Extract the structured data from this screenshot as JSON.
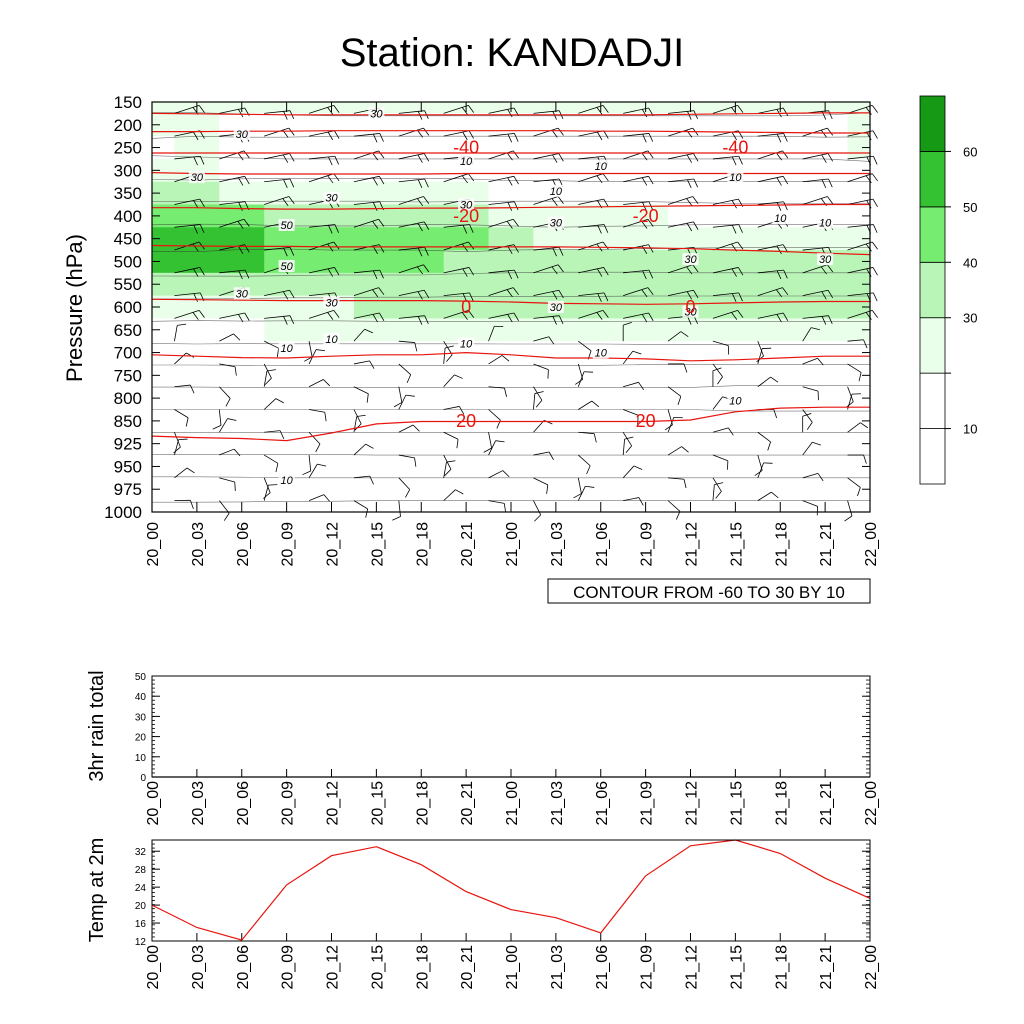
{
  "title": "Station: KANDADJI",
  "colors": {
    "isotherm": "#e8140e",
    "wind": "#000000",
    "temp_line": "#e8140e",
    "levels": [
      "#ffffff",
      "#ffffff",
      "#eaffea",
      "#baf5b8",
      "#76ec70",
      "#35c232",
      "#169a16"
    ]
  },
  "chart_data": [
    {
      "type": "heatmap",
      "title": "Station: KANDADJI",
      "ylabel": "Pressure (hPa)",
      "xlabel": "",
      "x_ticks": [
        "20_00",
        "20_03",
        "20_06",
        "20_09",
        "20_12",
        "20_15",
        "20_18",
        "20_21",
        "21_00",
        "21_03",
        "21_06",
        "21_09",
        "21_12",
        "21_15",
        "21_18",
        "21_21",
        "22_00"
      ],
      "y_ticks": [
        "150",
        "200",
        "250",
        "300",
        "350",
        "400",
        "450",
        "500",
        "550",
        "600",
        "650",
        "700",
        "750",
        "800",
        "850",
        "925",
        "950",
        "975",
        "1000"
      ],
      "contour_info": "CONTOUR FROM -60 TO 30 BY 10",
      "colorbar": {
        "levels": [
          10,
          20,
          30,
          40,
          50,
          60
        ],
        "labels": [
          "10",
          "30",
          "40",
          "50",
          "60"
        ]
      },
      "wind_speed_fill": [
        [
          20,
          20,
          20,
          20,
          20,
          20,
          20,
          20,
          20,
          20,
          20,
          20,
          20,
          20,
          20,
          20,
          20
        ],
        [
          22,
          22,
          18,
          15,
          12,
          12,
          12,
          12,
          12,
          12,
          12,
          12,
          12,
          12,
          12,
          15,
          22
        ],
        [
          15,
          22,
          15,
          12,
          12,
          12,
          12,
          12,
          12,
          12,
          12,
          12,
          12,
          12,
          12,
          12,
          20
        ],
        [
          28,
          28,
          18,
          12,
          12,
          12,
          12,
          12,
          12,
          12,
          12,
          12,
          12,
          12,
          12,
          12,
          12
        ],
        [
          35,
          33,
          28,
          25,
          25,
          25,
          25,
          22,
          15,
          15,
          12,
          12,
          12,
          12,
          12,
          12,
          12
        ],
        [
          46,
          45,
          40,
          38,
          38,
          38,
          33,
          32,
          28,
          28,
          25,
          22,
          18,
          15,
          15,
          15,
          15
        ],
        [
          54,
          56,
          50,
          42,
          42,
          42,
          42,
          40,
          32,
          28,
          28,
          26,
          26,
          24,
          24,
          24,
          24
        ],
        [
          50,
          51,
          52,
          45,
          42,
          42,
          42,
          35,
          32,
          30,
          30,
          30,
          32,
          32,
          32,
          32,
          32
        ],
        [
          38,
          38,
          38,
          35,
          35,
          35,
          35,
          33,
          32,
          32,
          32,
          32,
          32,
          32,
          32,
          32,
          32
        ],
        [
          25,
          25,
          27,
          28,
          28,
          30,
          30,
          30,
          30,
          30,
          30,
          31,
          31,
          31,
          31,
          31,
          31
        ],
        [
          15,
          18,
          18,
          20,
          20,
          20,
          20,
          20,
          20,
          20,
          20,
          20,
          20,
          20,
          20,
          20,
          20
        ],
        [
          8,
          8,
          10,
          11,
          11,
          11,
          11,
          11,
          10,
          10,
          10,
          8,
          8,
          8,
          8,
          8,
          8
        ],
        [
          5,
          5,
          6,
          6,
          6,
          6,
          6,
          6,
          6,
          6,
          6,
          6,
          6,
          6,
          6,
          6,
          6
        ],
        [
          4,
          4,
          4,
          4,
          4,
          4,
          4,
          4,
          4,
          4,
          4,
          4,
          4,
          9,
          9,
          9,
          9
        ],
        [
          4,
          4,
          4,
          4,
          4,
          4,
          4,
          4,
          4,
          4,
          4,
          4,
          4,
          4,
          4,
          4,
          4
        ],
        [
          4,
          4,
          4,
          4,
          4,
          4,
          4,
          4,
          4,
          4,
          4,
          4,
          4,
          4,
          4,
          4,
          4
        ],
        [
          6,
          6,
          6,
          6,
          6,
          4,
          4,
          4,
          4,
          4,
          4,
          4,
          4,
          4,
          4,
          4,
          4
        ],
        [
          9,
          9,
          8,
          6,
          6,
          4,
          4,
          4,
          4,
          4,
          4,
          4,
          4,
          4,
          4,
          4,
          4
        ],
        [
          4,
          4,
          4,
          4,
          4,
          4,
          4,
          4,
          4,
          4,
          4,
          4,
          4,
          4,
          4,
          4,
          4
        ]
      ],
      "isotherm_labels": [
        {
          "text": "-40",
          "x": "20_21",
          "p": "250"
        },
        {
          "text": "-40",
          "x": "21_15",
          "p": "250"
        },
        {
          "text": "-20",
          "x": "20_21",
          "p": "400"
        },
        {
          "text": "-20",
          "x": "21_09",
          "p": "400"
        },
        {
          "text": "0",
          "x": "20_21",
          "p": "600"
        },
        {
          "text": "0",
          "x": "21_12",
          "p": "600"
        },
        {
          "text": "20",
          "x": "20_21",
          "p": "850"
        },
        {
          "text": "20",
          "x": "21_09",
          "p": "850"
        }
      ],
      "isotherms": [
        {
          "level": -40,
          "p": [
            175,
            176,
            177,
            178,
            178,
            178,
            178,
            178,
            178,
            178,
            178,
            178,
            177,
            176,
            175,
            174,
            174
          ]
        },
        {
          "level": -40,
          "p": [
            215,
            215,
            214,
            214,
            213,
            213,
            213,
            213,
            213,
            213,
            214,
            214,
            215,
            216,
            217,
            218,
            218
          ]
        },
        {
          "level": -40,
          "p": [
            262,
            262,
            262,
            262,
            262,
            262,
            262,
            262,
            262,
            262,
            262,
            262,
            262,
            262,
            262,
            262,
            262
          ]
        },
        {
          "level": -40,
          "p": [
            305,
            307,
            308,
            308,
            308,
            308,
            308,
            307,
            307,
            307,
            307,
            307,
            307,
            307,
            307,
            307,
            307
          ]
        },
        {
          "level": -20,
          "p": [
            382,
            382,
            384,
            385,
            385,
            384,
            383,
            383,
            382,
            381,
            380,
            379,
            378,
            377,
            376,
            375,
            375
          ]
        },
        {
          "level": -20,
          "p": [
            465,
            466,
            467,
            467,
            468,
            468,
            468,
            468,
            468,
            468,
            469,
            470,
            472,
            475,
            478,
            482,
            485
          ]
        },
        {
          "level": 0,
          "p": [
            583,
            584,
            585,
            586,
            586,
            586,
            586,
            587,
            589,
            592,
            593,
            594,
            593,
            591,
            589,
            588,
            588
          ]
        },
        {
          "level": 0,
          "p": [
            705,
            708,
            711,
            712,
            708,
            705,
            705,
            700,
            705,
            712,
            712,
            714,
            718,
            716,
            712,
            708,
            708
          ]
        },
        {
          "level": 20,
          "p": [
            900,
            905,
            908,
            915,
            890,
            860,
            852,
            852,
            852,
            852,
            852,
            852,
            848,
            830,
            822,
            820,
            820
          ]
        }
      ],
      "black_contour_labels": [
        {
          "text": "30",
          "x": "20_15",
          "p": "175"
        },
        {
          "text": "30",
          "x": "20_06",
          "p": "220"
        },
        {
          "text": "30",
          "x": "20_03",
          "p": "315"
        },
        {
          "text": "30",
          "x": "20_12",
          "p": "360"
        },
        {
          "text": "30",
          "x": "20_21",
          "p": "375"
        },
        {
          "text": "30",
          "x": "21_03",
          "p": "415"
        },
        {
          "text": "30",
          "x": "21_12",
          "p": "495"
        },
        {
          "text": "30",
          "x": "21_21",
          "p": "495"
        },
        {
          "text": "30",
          "x": "20_06",
          "p": "570"
        },
        {
          "text": "30",
          "x": "20_12",
          "p": "590"
        },
        {
          "text": "30",
          "x": "21_03",
          "p": "600"
        },
        {
          "text": "30",
          "x": "21_12",
          "p": "610"
        },
        {
          "text": "50",
          "x": "20_09",
          "p": "420"
        },
        {
          "text": "50",
          "x": "20_09",
          "p": "510"
        },
        {
          "text": "10",
          "x": "20_21",
          "p": "280"
        },
        {
          "text": "10",
          "x": "21_06",
          "p": "290"
        },
        {
          "text": "10",
          "x": "21_15",
          "p": "315"
        },
        {
          "text": "10",
          "x": "21_03",
          "p": "345"
        },
        {
          "text": "10",
          "x": "21_18",
          "p": "405"
        },
        {
          "text": "10",
          "x": "21_21",
          "p": "415"
        },
        {
          "text": "10",
          "x": "20_09",
          "p": "690"
        },
        {
          "text": "10",
          "x": "20_12",
          "p": "670"
        },
        {
          "text": "10",
          "x": "20_21",
          "p": "680"
        },
        {
          "text": "10",
          "x": "21_06",
          "p": "700"
        },
        {
          "text": "10",
          "x": "21_15",
          "p": "805"
        },
        {
          "text": "10",
          "x": "20_09",
          "p": "965"
        }
      ]
    },
    {
      "type": "line",
      "ylabel": "3hr rain total",
      "categories": [
        "20_00",
        "20_03",
        "20_06",
        "20_09",
        "20_12",
        "20_15",
        "20_18",
        "20_21",
        "21_00",
        "21_03",
        "21_06",
        "21_09",
        "21_12",
        "21_15",
        "21_18",
        "21_21",
        "22_00"
      ],
      "values": [
        0,
        0,
        0,
        0,
        0,
        0,
        0,
        0,
        0,
        0,
        0,
        0,
        0,
        0,
        0,
        0,
        0
      ],
      "ylim": [
        0,
        50
      ],
      "y_ticks": [
        "0",
        "10",
        "20",
        "30",
        "40",
        "50"
      ]
    },
    {
      "type": "line",
      "ylabel": "Temp at 2m",
      "categories": [
        "20_00",
        "20_03",
        "20_06",
        "20_09",
        "20_12",
        "20_15",
        "20_18",
        "20_21",
        "21_00",
        "21_03",
        "21_06",
        "21_09",
        "21_12",
        "21_15",
        "21_18",
        "21_21",
        "22_00"
      ],
      "values": [
        20,
        15,
        12.2,
        24.5,
        31,
        33,
        29,
        23,
        19,
        17.2,
        13.8,
        26.5,
        33.2,
        34.5,
        31.5,
        26,
        21.5
      ],
      "ylim": [
        12,
        34.5
      ],
      "y_ticks": [
        "12",
        "16",
        "20",
        "24",
        "28",
        "32"
      ]
    }
  ]
}
